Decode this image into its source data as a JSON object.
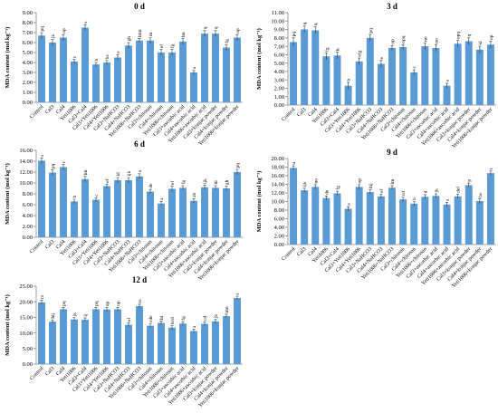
{
  "chart_data": [
    {
      "type": "bar",
      "title": "0 d",
      "y_label": "MDA content (mol kg⁻¹)",
      "color": "#5b9bd5",
      "categories": [
        "Control",
        "Cal3",
        "Cal4",
        "Yeti1006",
        "Cal3+Cal4",
        "Cal3+Yeti1006",
        "Cal4+Yeti1006",
        "Cal3+NaHCO3",
        "Cal4+NaHCO3",
        "Yeti1006+NaHCO3",
        "Cal3+chitosan",
        "Cal4+chitosan",
        "Yeti1006+chitosan",
        "Cal3+ascorbic acid",
        "Cal4+ascorbic acid",
        "Yeti1006+ascorbic acid",
        "Cal3+konjac powder",
        "Cal4+konjac powder",
        "Yeti1006+konjac powder"
      ],
      "values": [
        6.7,
        6.0,
        6.5,
        4.1,
        7.5,
        3.8,
        4.0,
        4.5,
        5.7,
        6.2,
        6.2,
        5.0,
        5.0,
        6.1,
        3.0,
        6.9,
        6.9,
        5.5,
        6.5
      ],
      "errors": [
        0.3,
        0.3,
        0.3,
        0.2,
        0.3,
        0.2,
        0.2,
        0.3,
        0.3,
        0.2,
        0.3,
        0.3,
        0.3,
        0.3,
        0.2,
        0.3,
        0.3,
        0.3,
        0.3
      ],
      "letters": [
        "pq",
        "jk",
        "op",
        "c",
        "s",
        "b",
        "bc",
        "e",
        "gh",
        "lmn",
        "m",
        "ef",
        "fg",
        "lm",
        "a",
        "q",
        "q",
        "fg",
        "op"
      ],
      "ylim": [
        0,
        9
      ],
      "yticks": [
        {
          "value": 0,
          "label": "0.00"
        },
        {
          "value": 1,
          "label": "1.00"
        },
        {
          "value": 2,
          "label": "2.00"
        },
        {
          "value": 3,
          "label": "3.00"
        },
        {
          "value": 4,
          "label": "4.00"
        },
        {
          "value": 5,
          "label": "5.00"
        },
        {
          "value": 6,
          "label": "6.00"
        },
        {
          "value": 7,
          "label": "7.00"
        },
        {
          "value": 8,
          "label": "8.00"
        },
        {
          "value": 9,
          "label": "9.00"
        }
      ]
    },
    {
      "type": "bar",
      "title": "3 d",
      "y_label": "MDA content (mol kg⁻¹)",
      "color": "#5b9bd5",
      "categories": [
        "Control",
        "Cal3",
        "Cal4",
        "Yeti1006",
        "Cal3+Cal4",
        "Cal3+Yeti1006",
        "Cal4+Yeti1006",
        "Cal3+NaHCO3",
        "Cal4+NaHCO3",
        "Yeti1006+NaHCO3",
        "Cal3+chitosan",
        "Cal4+chitosan",
        "Yeti1006+chitosan",
        "Cal3+ascorbic acid",
        "Cal4+ascorbic acid",
        "Yeti1006+ascorbic acid",
        "Cal3+konjac powder",
        "Cal4+konjac powder",
        "Yeti1006+konjac powder"
      ],
      "values": [
        7.5,
        9.0,
        8.9,
        5.8,
        5.9,
        2.3,
        5.2,
        8.0,
        4.9,
        6.8,
        6.9,
        3.9,
        7.0,
        6.8,
        2.3,
        7.3,
        7.6,
        6.6,
        7.2
      ],
      "errors": [
        0.5,
        0.4,
        0.4,
        0.4,
        0.4,
        0.4,
        0.4,
        0.4,
        0.4,
        0.3,
        0.3,
        0.3,
        0.4,
        0.4,
        0.3,
        0.4,
        0.4,
        0.4,
        0.4
      ],
      "letters": [
        "pq",
        "q",
        "q",
        "fg",
        "h",
        "b",
        "efg",
        "pq",
        "e",
        "op",
        "opq",
        "c",
        "no",
        "no",
        "a",
        "opq",
        "q",
        "kl",
        "op"
      ],
      "ylim": [
        0,
        11
      ],
      "yticks": [
        {
          "value": 0,
          "label": "0.00"
        },
        {
          "value": 1,
          "label": "1.00"
        },
        {
          "value": 2,
          "label": "2.00"
        },
        {
          "value": 3,
          "label": "3.00"
        },
        {
          "value": 4,
          "label": "4.00"
        },
        {
          "value": 5,
          "label": "5.00"
        },
        {
          "value": 6,
          "label": "6.00"
        },
        {
          "value": 7,
          "label": "7.00"
        },
        {
          "value": 8,
          "label": "8.00"
        },
        {
          "value": 9,
          "label": "9.00"
        },
        {
          "value": 10,
          "label": "10.00"
        },
        {
          "value": 11,
          "label": "11.00"
        }
      ]
    },
    {
      "type": "bar",
      "title": "6 d",
      "y_label": "MDA content (mol kg⁻¹)",
      "color": "#5b9bd5",
      "categories": [
        "Control",
        "Cal3",
        "Cal4",
        "Yeti1006",
        "Cal3+Cal4",
        "Cal3+Yeti1006",
        "Cal4+Yeti1006",
        "Cal3+NaHCO3",
        "Cal4+NaHCO3",
        "Yeti1006+NaHCO3",
        "Cal3+chitosan",
        "Cal4+chitosan",
        "Yeti1006+chitosan",
        "Cal3+ascorbic acid",
        "Cal4+ascorbic acid",
        "Yeti1006+ascorbic acid",
        "Cal3+konjac powder",
        "Cal4+konjac powder",
        "Yeti1006+konjac powder"
      ],
      "values": [
        14.1,
        11.9,
        12.9,
        6.6,
        10.7,
        6.9,
        9.4,
        10.5,
        10.5,
        11.2,
        8.4,
        6.2,
        8.9,
        9.1,
        6.7,
        9.2,
        9.1,
        9.0,
        12.0
      ],
      "errors": [
        0.5,
        0.5,
        0.5,
        0.4,
        0.5,
        0.4,
        0.4,
        0.5,
        0.5,
        0.5,
        0.4,
        0.4,
        0.5,
        0.4,
        0.4,
        0.4,
        0.4,
        0.4,
        0.5
      ],
      "letters": [
        "s",
        "pq",
        "r",
        "b",
        "lm",
        "c",
        "ef",
        "kl",
        "ijk",
        "o",
        "de",
        "a",
        "ef",
        "fg",
        "ab",
        "ijk",
        "hi",
        "gh",
        "pq"
      ],
      "ylim": [
        0,
        16
      ],
      "yticks": [
        {
          "value": 0,
          "label": "0.00"
        },
        {
          "value": 2,
          "label": "2.00"
        },
        {
          "value": 4,
          "label": "4.00"
        },
        {
          "value": 6,
          "label": "6.00"
        },
        {
          "value": 8,
          "label": "8.00"
        },
        {
          "value": 10,
          "label": "10.00"
        },
        {
          "value": 12,
          "label": "12.00"
        },
        {
          "value": 14,
          "label": "14.00"
        },
        {
          "value": 16,
          "label": "16.00"
        }
      ]
    },
    {
      "type": "bar",
      "title": "9 d",
      "y_label": "MDA content (mol kg⁻¹)",
      "color": "#5b9bd5",
      "categories": [
        "Control",
        "Cal3",
        "Cal4",
        "Yeti1006",
        "Cal3+Cal4",
        "Cal3+Yeti1006",
        "Cal4+Yeti1006",
        "Cal3+NaHCO3",
        "Cal4+NaHCO3",
        "Yeti1006+NaHCO3",
        "Cal3+chitosan",
        "Cal4+chitosan",
        "Yeti1006+chitosan",
        "Cal3+ascorbic acid",
        "Cal4+ascorbic acid",
        "Yeti1006+ascorbic acid",
        "Cal3+konjac powder",
        "Cal4+konjac powder",
        "Yeti1006+konjac powder"
      ],
      "values": [
        17.8,
        12.6,
        13.4,
        10.8,
        11.9,
        8.3,
        13.4,
        12.2,
        11.2,
        13.2,
        10.5,
        9.5,
        11.1,
        11.3,
        9.3,
        11.2,
        13.8,
        10.1,
        16.6
      ],
      "errors": [
        0.5,
        0.5,
        0.5,
        0.5,
        0.5,
        0.5,
        0.5,
        0.5,
        0.5,
        0.5,
        0.5,
        0.5,
        0.5,
        0.5,
        0.5,
        0.5,
        0.5,
        0.6,
        0.5
      ],
      "letters": [
        "u",
        "ijk",
        "no",
        "de",
        "fg",
        "a",
        "op",
        "hij",
        "ef",
        "lm",
        "cd",
        "b",
        "d",
        "jk",
        "a",
        "def",
        "p",
        "bc",
        "t"
      ],
      "ylim": [
        0,
        20
      ],
      "yticks": [
        {
          "value": 0,
          "label": "0.00"
        },
        {
          "value": 2,
          "label": "2.00"
        },
        {
          "value": 4,
          "label": "4.00"
        },
        {
          "value": 6,
          "label": "6.00"
        },
        {
          "value": 8,
          "label": "8.00"
        },
        {
          "value": 10,
          "label": "10.00"
        },
        {
          "value": 12,
          "label": "12.00"
        },
        {
          "value": 14,
          "label": "14.00"
        },
        {
          "value": 16,
          "label": "16.00"
        },
        {
          "value": 18,
          "label": "18.00"
        },
        {
          "value": 20,
          "label": "20.00"
        }
      ]
    },
    {
      "type": "bar",
      "title": "12 d",
      "y_label": "MDA content (mol kg⁻¹)",
      "color": "#5b9bd5",
      "categories": [
        "Control",
        "Cal3",
        "Cal4",
        "Yeti1006",
        "Cal3+Cal4",
        "Cal3+Yeti1006",
        "Cal4+Yeti1006",
        "Cal3+NaHCO3",
        "Cal4+NaHCO3",
        "Yeti1006+NaHCO3",
        "Cal3+chitosan",
        "Cal4+chitosan",
        "Yeti1006+chitosan",
        "Cal3+ascorbic acid",
        "Cal4+ascorbic acid",
        "Yeti1006+ascorbic acid",
        "Cal3+konjac powder",
        "Cal4+konjac powder",
        "Yeti1006+konjac powder"
      ],
      "values": [
        19.8,
        13.6,
        17.6,
        14.3,
        14.2,
        17.6,
        17.5,
        17.6,
        12.6,
        18.6,
        12.3,
        13.2,
        11.7,
        13.0,
        10.6,
        12.9,
        13.7,
        15.4,
        21.2
      ],
      "errors": [
        0.7,
        0.6,
        0.6,
        0.6,
        0.6,
        0.6,
        0.6,
        0.6,
        0.6,
        0.6,
        0.6,
        0.6,
        0.6,
        0.6,
        0.6,
        0.6,
        0.6,
        0.6,
        0.6
      ],
      "letters": [
        "rs",
        "hij",
        "pq",
        "jk",
        "ij",
        "pq",
        "op",
        "op",
        "ef",
        "rs",
        "cde",
        "hi",
        "bcd",
        "fg",
        "a",
        "cd",
        "jk",
        "mn",
        "t"
      ],
      "ylim": [
        0,
        25
      ],
      "yticks": [
        {
          "value": 0,
          "label": "0.00"
        },
        {
          "value": 5,
          "label": "5.00"
        },
        {
          "value": 10,
          "label": "10.00"
        },
        {
          "value": 15,
          "label": "15.00"
        },
        {
          "value": 20,
          "label": "20.00"
        },
        {
          "value": 25,
          "label": "25.00"
        }
      ]
    }
  ]
}
